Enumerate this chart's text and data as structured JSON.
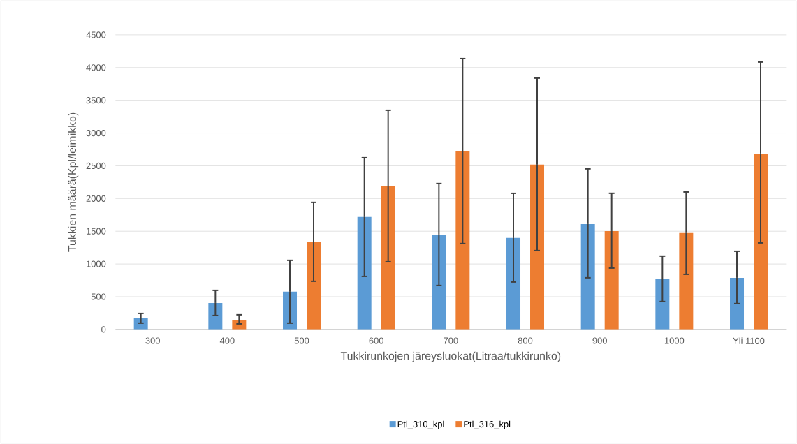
{
  "chart_data": {
    "type": "bar",
    "xlabel": "Tukkirunkojen järeysluokat(Litraa/tukkirunko)",
    "ylabel": "Tukkien määrä(Kpl/leimikko)",
    "categories": [
      "300",
      "400",
      "500",
      "600",
      "700",
      "800",
      "900",
      "1000",
      "Yli 1100"
    ],
    "series": [
      {
        "name": "Ptl_310_kpl",
        "color": "#5b9bd5",
        "values": [
          170,
          405,
          576,
          1717,
          1450,
          1397,
          1610,
          768,
          789
        ],
        "errors": [
          [
            96,
            245
          ],
          [
            213,
            597
          ],
          [
            96,
            1056
          ],
          [
            810,
            2623
          ],
          [
            672,
            2229
          ],
          [
            725,
            2079
          ],
          [
            789,
            2453
          ],
          [
            427,
            1120
          ],
          [
            395,
            1194
          ]
        ]
      },
      {
        "name": "Ptl_316_kpl",
        "color": "#ed7d31",
        "values": [
          null,
          139,
          1333,
          2186,
          2719,
          2517,
          1503,
          1472,
          2687
        ],
        "errors": [
          null,
          [
            85,
            224
          ],
          [
            736,
            1941
          ],
          [
            1034,
            3348
          ],
          [
            1312,
            4137
          ],
          [
            1205,
            3839
          ],
          [
            938,
            2080
          ],
          [
            842,
            2100
          ],
          [
            1322,
            4084
          ]
        ]
      }
    ],
    "ylim": [
      0,
      4500
    ],
    "yticks": [
      0,
      500,
      1000,
      1500,
      2000,
      2500,
      3000,
      3500,
      4000,
      4500
    ],
    "grid": "y",
    "legend": "bottom"
  }
}
